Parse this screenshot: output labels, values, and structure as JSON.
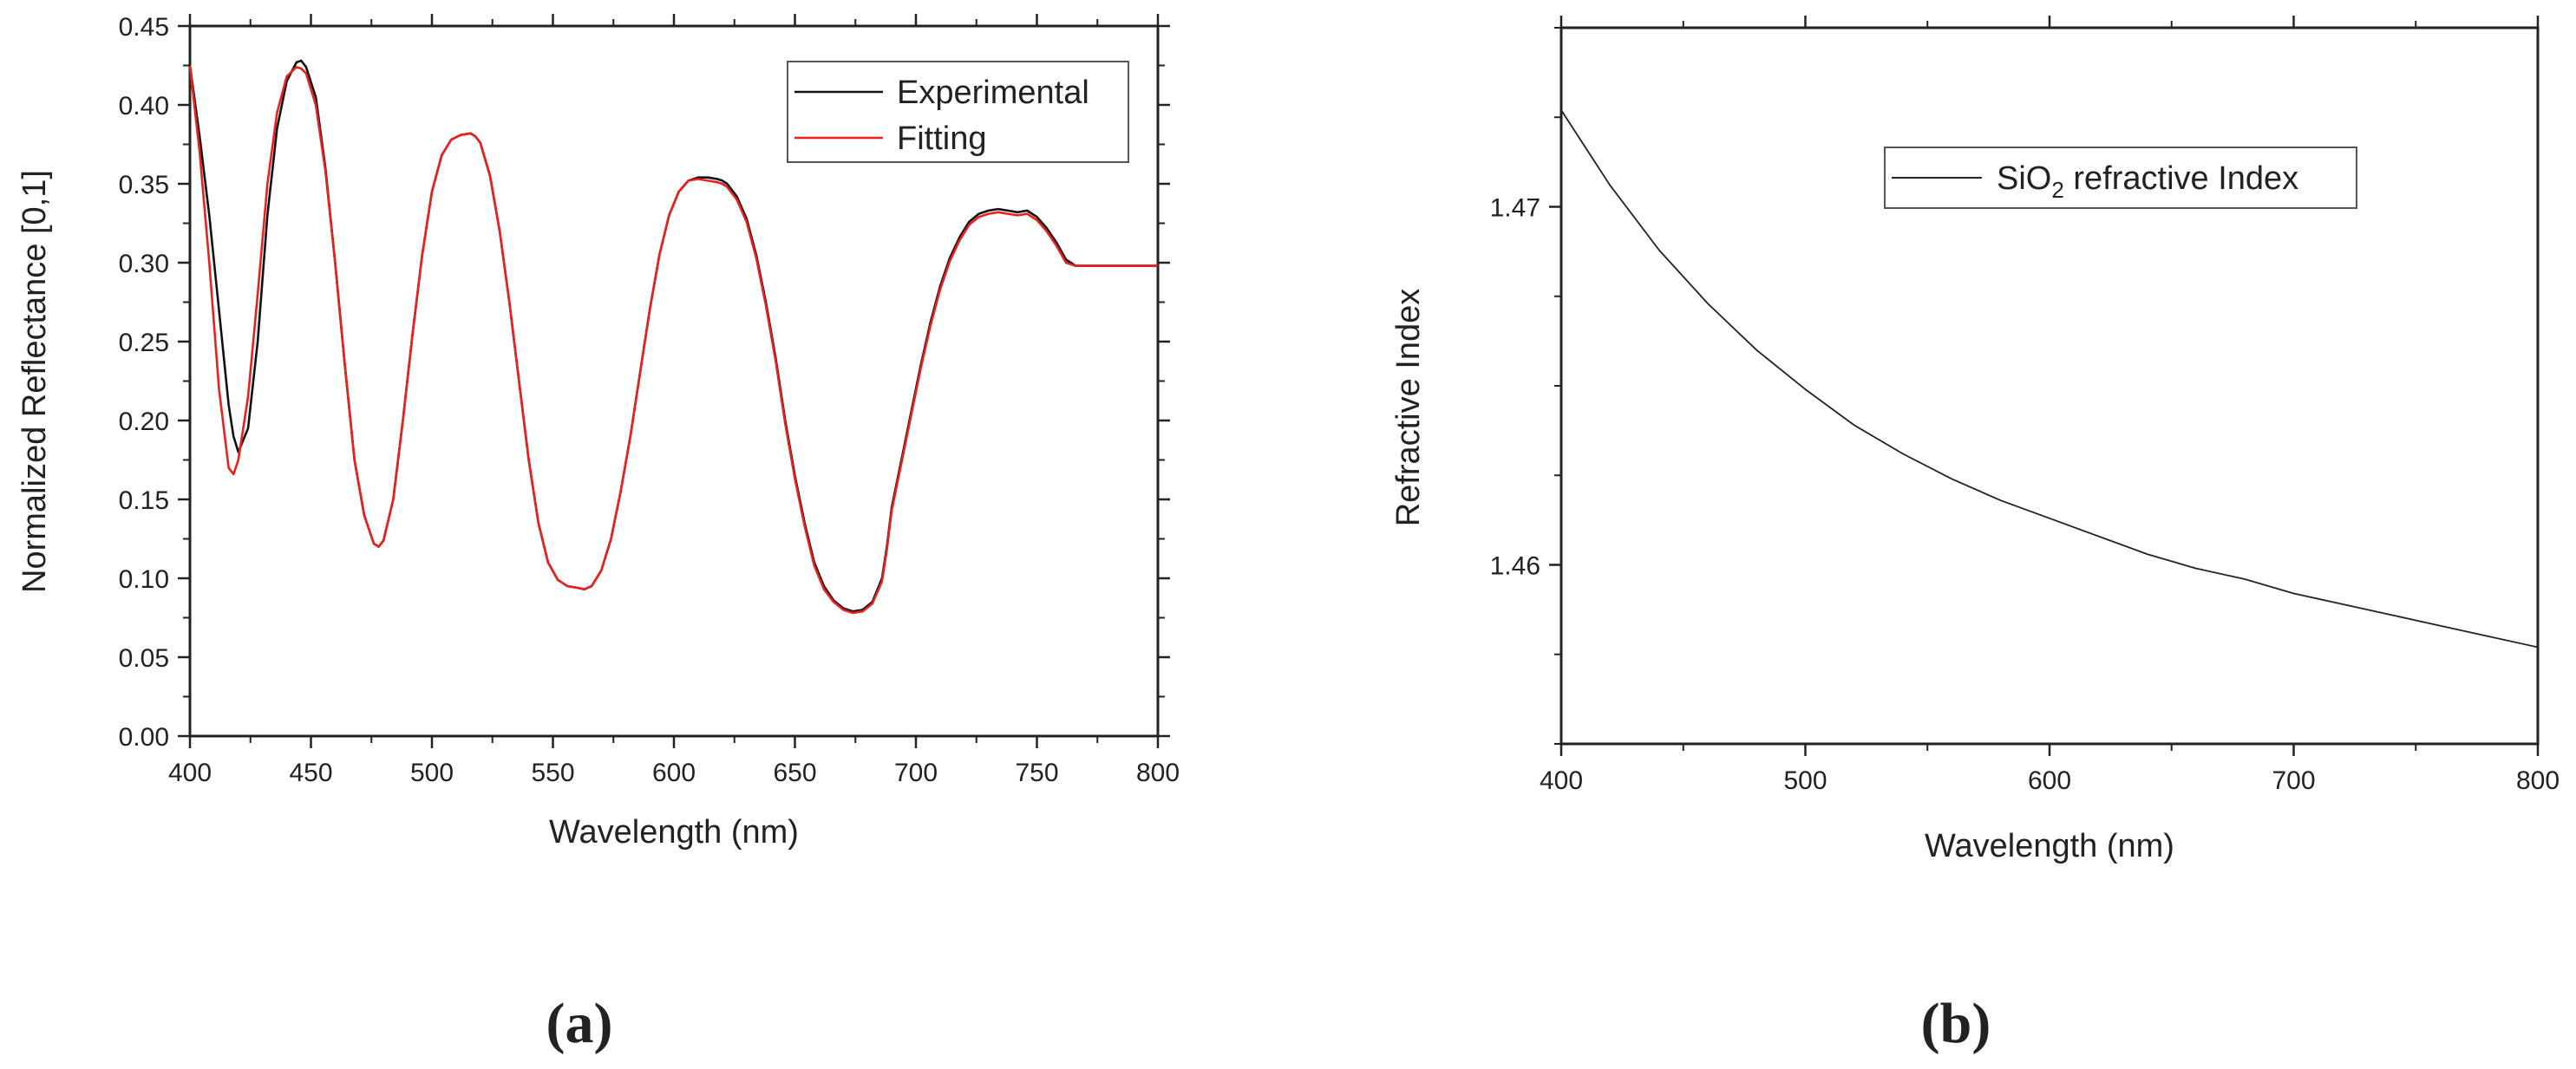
{
  "chart_data": [
    {
      "type": "line",
      "panel": "(a)",
      "title": "",
      "xlabel": "Wavelength (nm)",
      "ylabel": "Normalized Reflectance [0,1]",
      "xlim": [
        400,
        800
      ],
      "ylim": [
        0.0,
        0.45
      ],
      "xticks": [
        "400",
        "450",
        "500",
        "550",
        "600",
        "650",
        "700",
        "750",
        "800"
      ],
      "yticks": [
        "0.00",
        "0.05",
        "0.10",
        "0.15",
        "0.20",
        "0.25",
        "0.30",
        "0.35",
        "0.40",
        "0.45"
      ],
      "legend_position": "top-right",
      "series": [
        {
          "name": "Experimental",
          "color": "#111111",
          "x": [
            400,
            404,
            408,
            412,
            416,
            418,
            420,
            424,
            428,
            432,
            436,
            440,
            444,
            446,
            448,
            452,
            456,
            460,
            464,
            468,
            472,
            476,
            478,
            480,
            484,
            488,
            492,
            496,
            500,
            504,
            508,
            512,
            516,
            518,
            520,
            524,
            528,
            532,
            536,
            540,
            544,
            548,
            552,
            556,
            560,
            563,
            566,
            570,
            574,
            578,
            582,
            586,
            590,
            594,
            598,
            602,
            606,
            610,
            614,
            618,
            620,
            622,
            626,
            630,
            634,
            638,
            642,
            646,
            650,
            654,
            658,
            662,
            666,
            670,
            674,
            678,
            682,
            686,
            688,
            690,
            694,
            698,
            702,
            706,
            710,
            714,
            718,
            722,
            726,
            730,
            734,
            738,
            742,
            746,
            750,
            754,
            758,
            762,
            766,
            770,
            772,
            774,
            778,
            782,
            786,
            790,
            794,
            798,
            800
          ],
          "y": [
            0.425,
            0.38,
            0.33,
            0.27,
            0.21,
            0.19,
            0.18,
            0.195,
            0.25,
            0.33,
            0.385,
            0.415,
            0.427,
            0.428,
            0.424,
            0.405,
            0.36,
            0.3,
            0.235,
            0.175,
            0.14,
            0.122,
            0.12,
            0.124,
            0.15,
            0.2,
            0.255,
            0.305,
            0.345,
            0.368,
            0.378,
            0.381,
            0.382,
            0.38,
            0.376,
            0.355,
            0.32,
            0.275,
            0.225,
            0.175,
            0.135,
            0.11,
            0.099,
            0.095,
            0.094,
            0.093,
            0.095,
            0.105,
            0.125,
            0.155,
            0.19,
            0.23,
            0.27,
            0.305,
            0.33,
            0.345,
            0.352,
            0.354,
            0.354,
            0.353,
            0.352,
            0.35,
            0.342,
            0.328,
            0.305,
            0.275,
            0.24,
            0.2,
            0.165,
            0.135,
            0.11,
            0.095,
            0.086,
            0.081,
            0.079,
            0.08,
            0.085,
            0.1,
            0.12,
            0.145,
            0.175,
            0.205,
            0.235,
            0.262,
            0.285,
            0.303,
            0.316,
            0.326,
            0.331,
            0.333,
            0.334,
            0.333,
            0.332,
            0.333,
            0.329,
            0.322,
            0.313,
            0.302,
            0.298,
            0.298,
            0.298,
            0.298,
            0.298,
            0.298,
            0.298,
            0.298,
            0.298,
            0.298,
            0.298
          ],
          "note": "black trace"
        },
        {
          "name": "Fitting",
          "color": "#e8201e",
          "x": [
            400,
            404,
            408,
            412,
            416,
            418,
            420,
            424,
            428,
            432,
            436,
            440,
            444,
            446,
            448,
            452,
            456,
            460,
            464,
            468,
            472,
            476,
            478,
            480,
            484,
            488,
            492,
            496,
            500,
            504,
            508,
            512,
            516,
            518,
            520,
            524,
            528,
            532,
            536,
            540,
            544,
            548,
            552,
            556,
            560,
            563,
            566,
            570,
            574,
            578,
            582,
            586,
            590,
            594,
            598,
            602,
            606,
            610,
            614,
            618,
            620,
            622,
            626,
            630,
            634,
            638,
            642,
            646,
            650,
            654,
            658,
            662,
            666,
            670,
            674,
            678,
            682,
            686,
            688,
            690,
            694,
            698,
            702,
            706,
            710,
            714,
            718,
            722,
            726,
            730,
            734,
            738,
            742,
            746,
            750,
            754,
            758,
            762,
            766,
            770,
            772,
            774,
            778,
            782,
            786,
            790,
            794,
            798,
            800
          ],
          "y": [
            0.425,
            0.37,
            0.3,
            0.22,
            0.17,
            0.166,
            0.175,
            0.215,
            0.28,
            0.35,
            0.395,
            0.418,
            0.424,
            0.423,
            0.42,
            0.4,
            0.358,
            0.3,
            0.235,
            0.175,
            0.14,
            0.122,
            0.12,
            0.124,
            0.15,
            0.2,
            0.255,
            0.305,
            0.345,
            0.368,
            0.378,
            0.381,
            0.382,
            0.38,
            0.376,
            0.355,
            0.32,
            0.275,
            0.225,
            0.175,
            0.135,
            0.11,
            0.099,
            0.095,
            0.094,
            0.093,
            0.095,
            0.105,
            0.125,
            0.155,
            0.19,
            0.23,
            0.27,
            0.305,
            0.33,
            0.345,
            0.352,
            0.353,
            0.352,
            0.351,
            0.35,
            0.348,
            0.34,
            0.326,
            0.303,
            0.273,
            0.238,
            0.198,
            0.163,
            0.133,
            0.108,
            0.093,
            0.085,
            0.08,
            0.078,
            0.079,
            0.084,
            0.098,
            0.118,
            0.143,
            0.173,
            0.203,
            0.233,
            0.26,
            0.283,
            0.301,
            0.314,
            0.324,
            0.329,
            0.331,
            0.332,
            0.331,
            0.33,
            0.331,
            0.327,
            0.32,
            0.311,
            0.3,
            0.298,
            0.298,
            0.298,
            0.298,
            0.298,
            0.298,
            0.298,
            0.298,
            0.298,
            0.298,
            0.298
          ],
          "note": "red trace"
        }
      ]
    },
    {
      "type": "line",
      "panel": "(b)",
      "title": "",
      "xlabel": "Wavelength (nm)",
      "ylabel": "Refractive Index",
      "xlim": [
        400,
        800
      ],
      "ylim": [
        1.455,
        1.475
      ],
      "xticks": [
        "400",
        "500",
        "600",
        "700",
        "800"
      ],
      "yticks": [
        "1.46",
        "1.47"
      ],
      "legend_position": "top-center",
      "series": [
        {
          "name": "SiO",
          "name_subscript": "2",
          "name_suffix": " refractive Index",
          "color": "#222222",
          "x": [
            400,
            420,
            440,
            460,
            480,
            500,
            520,
            540,
            560,
            580,
            600,
            620,
            640,
            660,
            680,
            700,
            720,
            740,
            760,
            780,
            800
          ],
          "y": [
            1.4727,
            1.4706,
            1.4688,
            1.4673,
            1.466,
            1.4649,
            1.4639,
            1.4631,
            1.4624,
            1.4618,
            1.4613,
            1.4608,
            1.4603,
            1.4599,
            1.4596,
            1.4592,
            1.4589,
            1.4586,
            1.4583,
            1.458,
            1.4577
          ]
        }
      ]
    }
  ]
}
